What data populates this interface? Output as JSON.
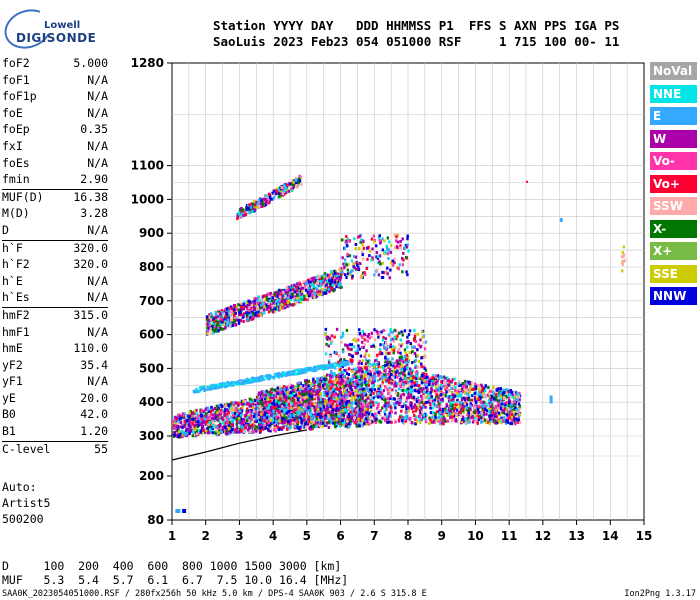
{
  "logo": {
    "line1": "Lowell",
    "line2": "DIGISONDE"
  },
  "header": {
    "line1": "Station YYYY DAY   DDD HHMMSS P1  FFS S AXN PPS IGA PS",
    "line2": "SaoLuis 2023 Feb23 054 051000 RSF     1 715 100 00- 11"
  },
  "params": [
    {
      "k": "foF2",
      "v": "5.000"
    },
    {
      "k": "foF1",
      "v": "N/A"
    },
    {
      "k": "foF1p",
      "v": "N/A"
    },
    {
      "k": "foE",
      "v": "N/A"
    },
    {
      "k": "foEp",
      "v": "0.35"
    },
    {
      "k": "fxI",
      "v": "N/A"
    },
    {
      "k": "foEs",
      "v": "N/A"
    },
    {
      "k": "fmin",
      "v": "2.90"
    },
    {
      "k": "MUF(D)",
      "v": "16.38",
      "sep": true
    },
    {
      "k": "M(D)",
      "v": "3.28"
    },
    {
      "k": "D",
      "v": "N/A"
    },
    {
      "k": "h`F",
      "v": "320.0",
      "sep": true
    },
    {
      "k": "h`F2",
      "v": "320.0"
    },
    {
      "k": "h`E",
      "v": "N/A"
    },
    {
      "k": "h`Es",
      "v": "N/A"
    },
    {
      "k": "hmF2",
      "v": "315.0",
      "sep": true
    },
    {
      "k": "hmF1",
      "v": "N/A"
    },
    {
      "k": "hmE",
      "v": "110.0"
    },
    {
      "k": "yF2",
      "v": "35.4"
    },
    {
      "k": "yF1",
      "v": "N/A"
    },
    {
      "k": "yE",
      "v": "20.0"
    },
    {
      "k": "B0",
      "v": "42.0"
    },
    {
      "k": "B1",
      "v": "1.20"
    },
    {
      "k": "C-level",
      "v": "55",
      "sep": true
    }
  ],
  "auto": {
    "line1": "Auto:",
    "line2": "Artist5",
    "line3": "500200"
  },
  "legend": [
    {
      "label": "NoVal",
      "color": "#a6a6a6"
    },
    {
      "label": "NNE",
      "color": "#00e5e5"
    },
    {
      "label": "E",
      "color": "#33aaff"
    },
    {
      "label": "W",
      "color": "#aa00aa"
    },
    {
      "label": "Vo-",
      "color": "#ff33aa"
    },
    {
      "label": "Vo+",
      "color": "#ff0033"
    },
    {
      "label": "SSW",
      "color": "#ffaaaa"
    },
    {
      "label": "X-",
      "color": "#007700"
    },
    {
      "label": "X+",
      "color": "#77bb44"
    },
    {
      "label": "SSE",
      "color": "#cccc00"
    },
    {
      "label": "NNW",
      "color": "#0000dd"
    }
  ],
  "muf_table": {
    "d_row": "D     100  200  400  600  800 1000 1500 3000 [km]",
    "muf_row": "MUF   5.3  5.4  5.7  6.1  6.7  7.5 10.0 16.4 [MHz]"
  },
  "footer": {
    "left": "SAA0K_2023054051000.RSF / 280fx256h 50 kHz 5.0 km / DPS-4 SAA0K 903 / 2.6 S 315.8 E",
    "right": "Ion2Png 1.3.17"
  },
  "chart_data": {
    "type": "scatter",
    "title": "",
    "xlabel": "",
    "ylabel": "",
    "xlim": [
      1,
      15
    ],
    "ylim": [
      80,
      1280
    ],
    "x_ticks": [
      1,
      2,
      3,
      4,
      5,
      6,
      7,
      8,
      9,
      10,
      11,
      12,
      13,
      14,
      15
    ],
    "y_ticks": [
      80,
      200,
      300,
      400,
      500,
      600,
      700,
      800,
      900,
      1000,
      1100,
      1280
    ],
    "grid": true,
    "traces": [
      {
        "name": "",
        "x_range": [
          1.0,
          6.9
        ],
        "h_range": [
          290,
          440
        ],
        "note": ""
      },
      {
        "name": "",
        "x_range": [
          2.0,
          11.3
        ],
        "h_range": [
          320,
          620
        ]
      },
      {
        "name": "",
        "x_range": [
          2.0,
          6.0
        ],
        "h_range": [
          610,
          790
        ]
      },
      {
        "name": "",
        "x_range": [
          6.0,
          8.0
        ],
        "h_range": [
          780,
          900
        ]
      },
      {
        "name": "",
        "x_range": [
          2.9,
          4.8
        ],
        "h_range": [
          950,
          1060
        ]
      }
    ],
    "profile_curve": {
      "x": [
        1.0,
        2.0,
        3.0,
        4.0,
        5.0
      ],
      "h": [
        240,
        260,
        282,
        300,
        318
      ]
    }
  }
}
